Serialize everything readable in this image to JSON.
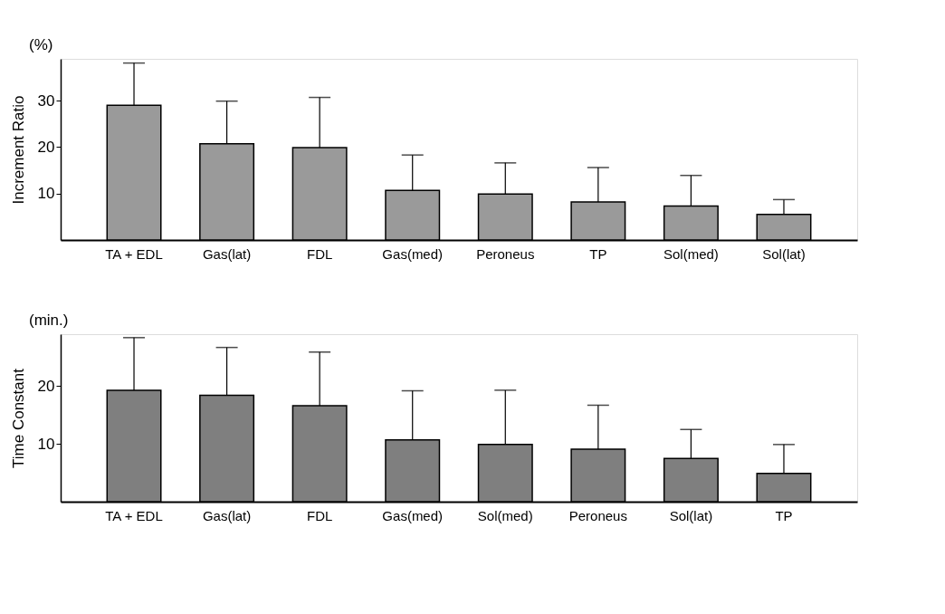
{
  "chart_data": [
    {
      "type": "bar",
      "ylabel": "Increment Ratio",
      "annotations": [
        "(%)"
      ],
      "categories": [
        "TA + EDL",
        "Gas(lat)",
        "FDL",
        "Gas(med)",
        "Peroneus",
        "TP",
        "Sol(med)",
        "Sol(lat)"
      ],
      "series": [
        {
          "color": "#9a9a9a",
          "values": [
            29.0,
            20.7,
            19.9,
            10.7,
            9.9,
            8.2,
            7.3,
            5.5
          ],
          "errors": [
            [
              29.0,
              38.1
            ],
            [
              20.7,
              29.9
            ],
            [
              19.9,
              30.7
            ],
            [
              10.7,
              18.3
            ],
            [
              9.9,
              16.6
            ],
            [
              8.2,
              15.6
            ],
            [
              7.3,
              13.9
            ],
            [
              5.5,
              8.7
            ]
          ]
        }
      ],
      "ylim": [
        0,
        39
      ],
      "yticks": [
        10,
        20,
        30
      ],
      "grid": false
    },
    {
      "type": "bar",
      "ylabel": "Time Constant",
      "annotations": [
        "(min.)"
      ],
      "categories": [
        "TA + EDL",
        "Gas(lat)",
        "FDL",
        "Gas(med)",
        "Sol(med)",
        "Peroneus",
        "Sol(lat)",
        "TP"
      ],
      "series": [
        {
          "color": "#7f7f7f",
          "values": [
            19.3,
            18.4,
            16.6,
            10.7,
            9.9,
            9.1,
            7.5,
            4.9
          ],
          "errors": [
            [
              19.3,
              28.4
            ],
            [
              18.4,
              26.7
            ],
            [
              16.6,
              25.9
            ],
            [
              10.7,
              19.2
            ],
            [
              9.9,
              19.3
            ],
            [
              9.1,
              16.7
            ],
            [
              7.5,
              12.5
            ],
            [
              4.9,
              9.9
            ]
          ]
        }
      ],
      "ylim": [
        0,
        29
      ],
      "yticks": [
        10,
        20
      ],
      "grid": false
    }
  ]
}
